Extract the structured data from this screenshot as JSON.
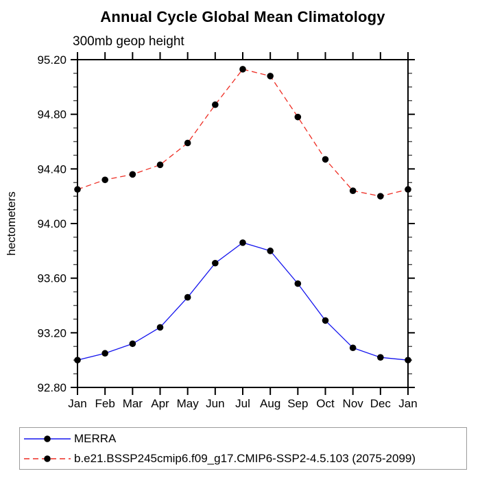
{
  "page": {
    "background": "#ffffff",
    "text_color": "#000000"
  },
  "header": {
    "title": "Annual Cycle Global Mean Climatology",
    "subtitle": "300mb geop height"
  },
  "chart_data": {
    "type": "line",
    "title": "Annual Cycle Global Mean Climatology",
    "subtitle": "300mb geop height",
    "xlabel": "",
    "ylabel": "hectometers",
    "x_categories": [
      "Jan",
      "Feb",
      "Mar",
      "Apr",
      "May",
      "Jun",
      "Jul",
      "Aug",
      "Sep",
      "Oct",
      "Nov",
      "Dec",
      "Jan"
    ],
    "ylim": [
      92.8,
      95.2
    ],
    "y_major_step": 0.4,
    "y_minor_step": 0.1,
    "y_tick_labels": [
      "92.80",
      "93.20",
      "93.60",
      "94.00",
      "94.40",
      "94.80",
      "95.20"
    ],
    "grid": false,
    "legend_position": "bottom-left-box",
    "axis_color": "#000000",
    "marker_color": "#000000",
    "series": [
      {
        "name": "MERRA",
        "color": "#1414ee",
        "line_style": "solid",
        "marker": "filled-circle",
        "values": [
          93.0,
          93.05,
          93.12,
          93.24,
          93.46,
          93.71,
          93.86,
          93.8,
          93.56,
          93.29,
          93.09,
          93.02,
          93.0
        ]
      },
      {
        "name": "b.e21.BSSP245cmip6.f09_g17.CMIP6-SSP2-4.5.103 (2075-2099)",
        "color": "#ee2c22",
        "line_style": "dashed",
        "marker": "filled-circle",
        "values": [
          94.25,
          94.32,
          94.36,
          94.43,
          94.59,
          94.87,
          95.13,
          95.08,
          94.78,
          94.47,
          94.24,
          94.2,
          94.25
        ]
      }
    ]
  }
}
